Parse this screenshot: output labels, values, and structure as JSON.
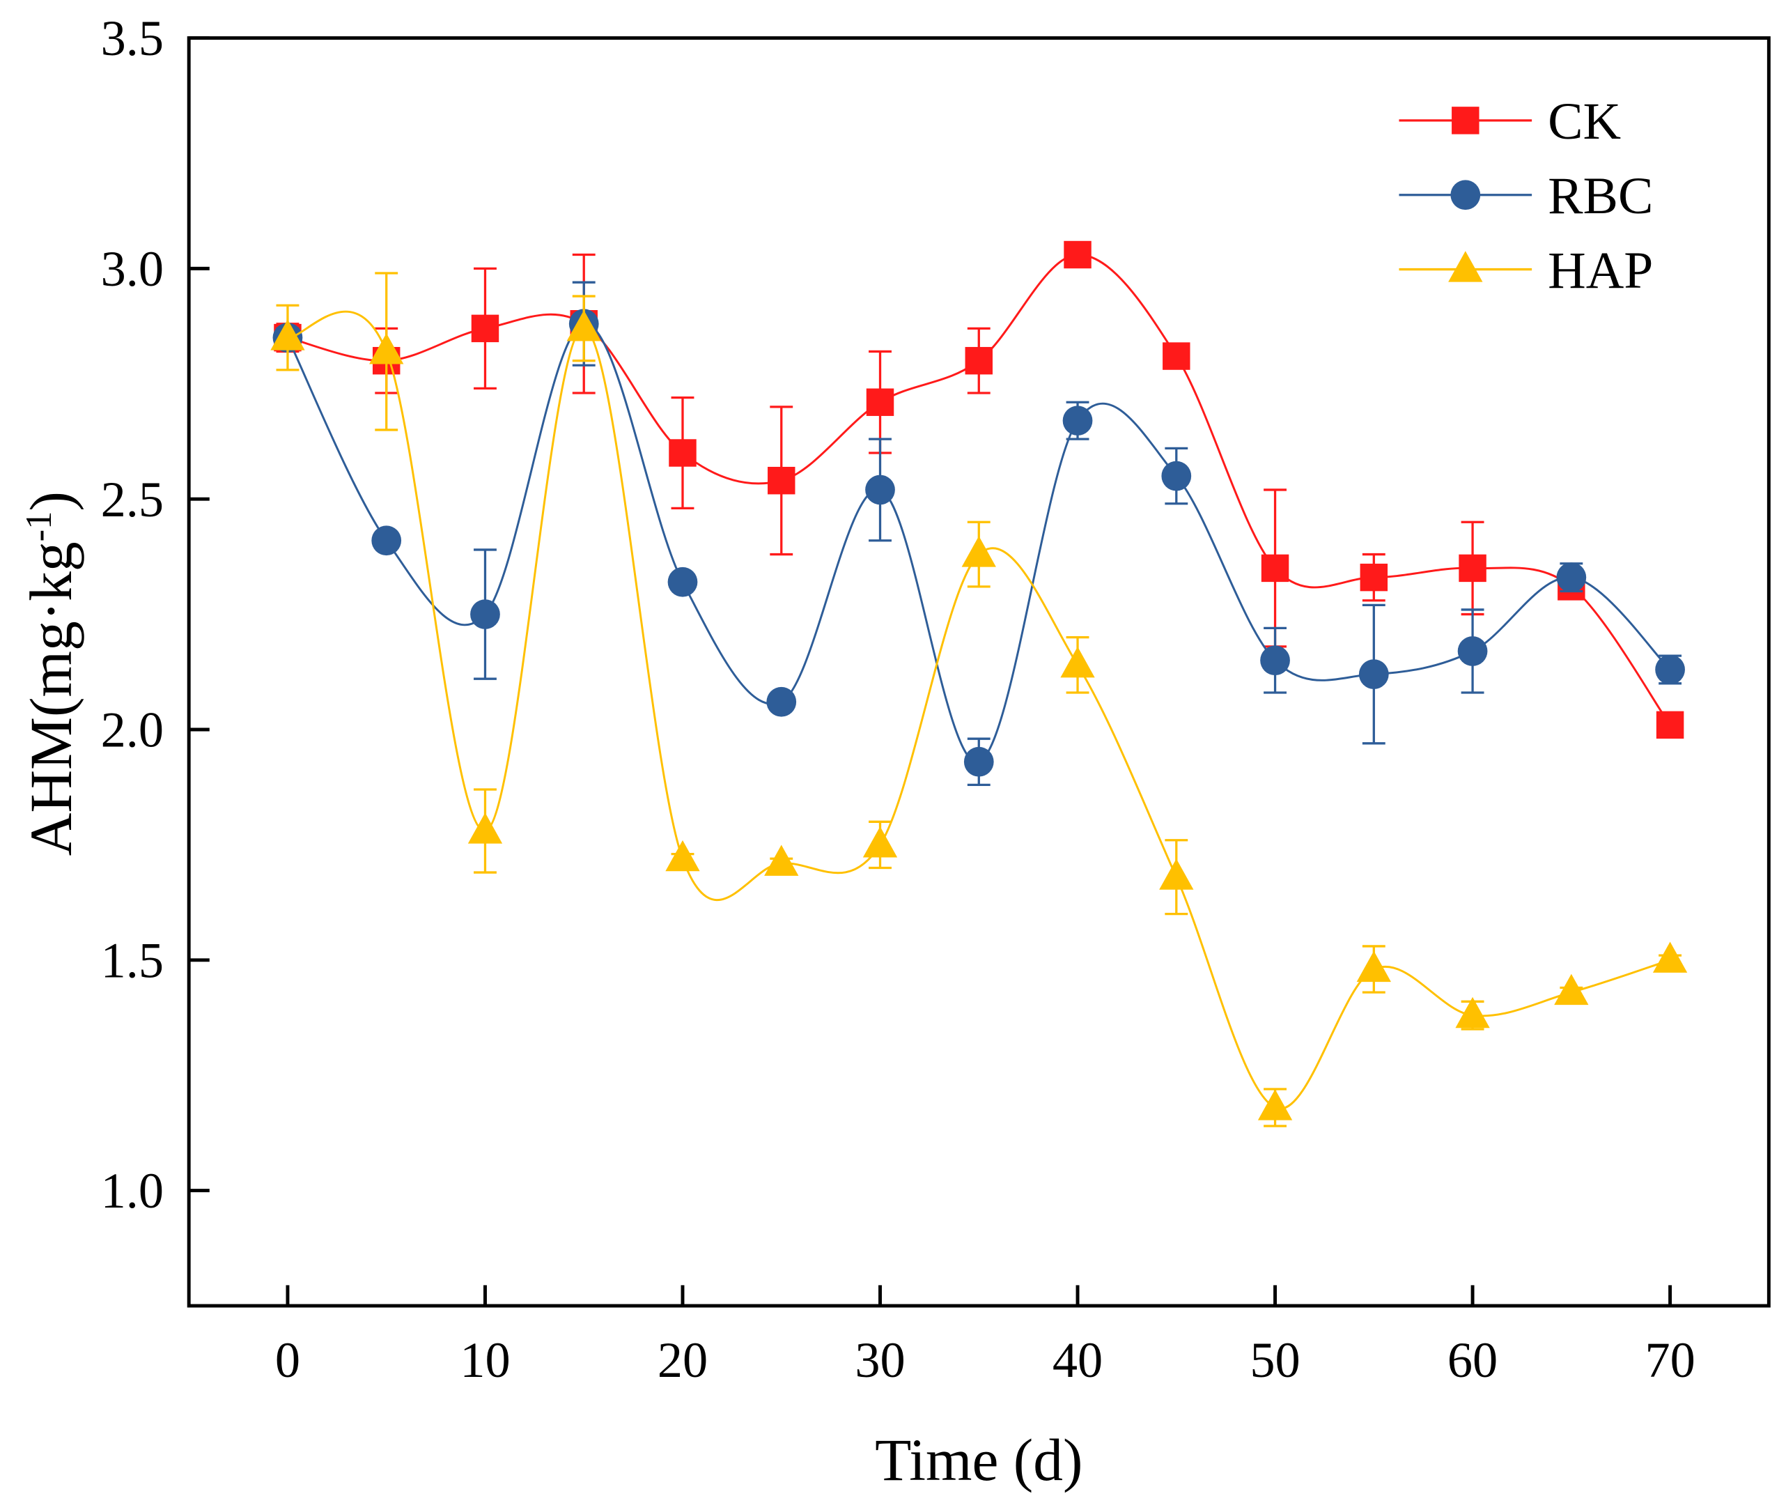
{
  "chart_data": {
    "type": "line",
    "title": "",
    "xlabel": "Time (d)",
    "ylabel": "AHM(mg·kg-1)",
    "ylabel_parts": {
      "main": "AHM(mg·kg",
      "sup": "-1",
      "close": ")"
    },
    "xlim": [
      -5,
      75
    ],
    "ylim": [
      0.75,
      3.5
    ],
    "xticks": [
      0,
      10,
      20,
      30,
      40,
      50,
      60,
      70
    ],
    "yticks": [
      1.0,
      1.5,
      2.0,
      2.5,
      3.0,
      3.5
    ],
    "ytick_labels": [
      "1.0",
      "1.5",
      "2.0",
      "2.5",
      "3.0",
      "3.5"
    ],
    "grid": false,
    "legend_position": "top-right",
    "x": [
      0,
      5,
      10,
      15,
      20,
      25,
      30,
      35,
      40,
      45,
      50,
      55,
      60,
      65,
      70
    ],
    "series": [
      {
        "name": "CK",
        "color": "#ff1a1a",
        "marker": "square",
        "values": [
          2.85,
          2.8,
          2.87,
          2.88,
          2.6,
          2.54,
          2.71,
          2.8,
          3.03,
          2.81,
          2.35,
          2.33,
          2.35,
          2.31,
          2.01
        ],
        "errors": [
          0.03,
          0.07,
          0.13,
          0.15,
          0.12,
          0.16,
          0.11,
          0.07,
          0.02,
          0.01,
          0.17,
          0.05,
          0.1,
          0.01,
          0.01
        ]
      },
      {
        "name": "RBC",
        "color": "#2e5d98",
        "marker": "circle",
        "values": [
          2.85,
          2.41,
          2.25,
          2.88,
          2.32,
          2.06,
          2.52,
          1.93,
          2.67,
          2.55,
          2.15,
          2.12,
          2.17,
          2.33,
          2.13
        ],
        "errors": [
          0.02,
          0.01,
          0.14,
          0.09,
          0.01,
          0.01,
          0.11,
          0.05,
          0.04,
          0.06,
          0.07,
          0.15,
          0.09,
          0.03,
          0.03
        ]
      },
      {
        "name": "HAP",
        "color": "#ffc000",
        "marker": "triangle",
        "values": [
          2.85,
          2.82,
          1.78,
          2.87,
          1.72,
          1.71,
          1.75,
          2.38,
          2.14,
          1.68,
          1.18,
          1.48,
          1.38,
          1.43,
          1.5
        ],
        "errors": [
          0.07,
          0.17,
          0.09,
          0.07,
          0.01,
          0.01,
          0.05,
          0.07,
          0.06,
          0.08,
          0.04,
          0.05,
          0.03,
          0.01,
          0.01
        ]
      }
    ]
  }
}
